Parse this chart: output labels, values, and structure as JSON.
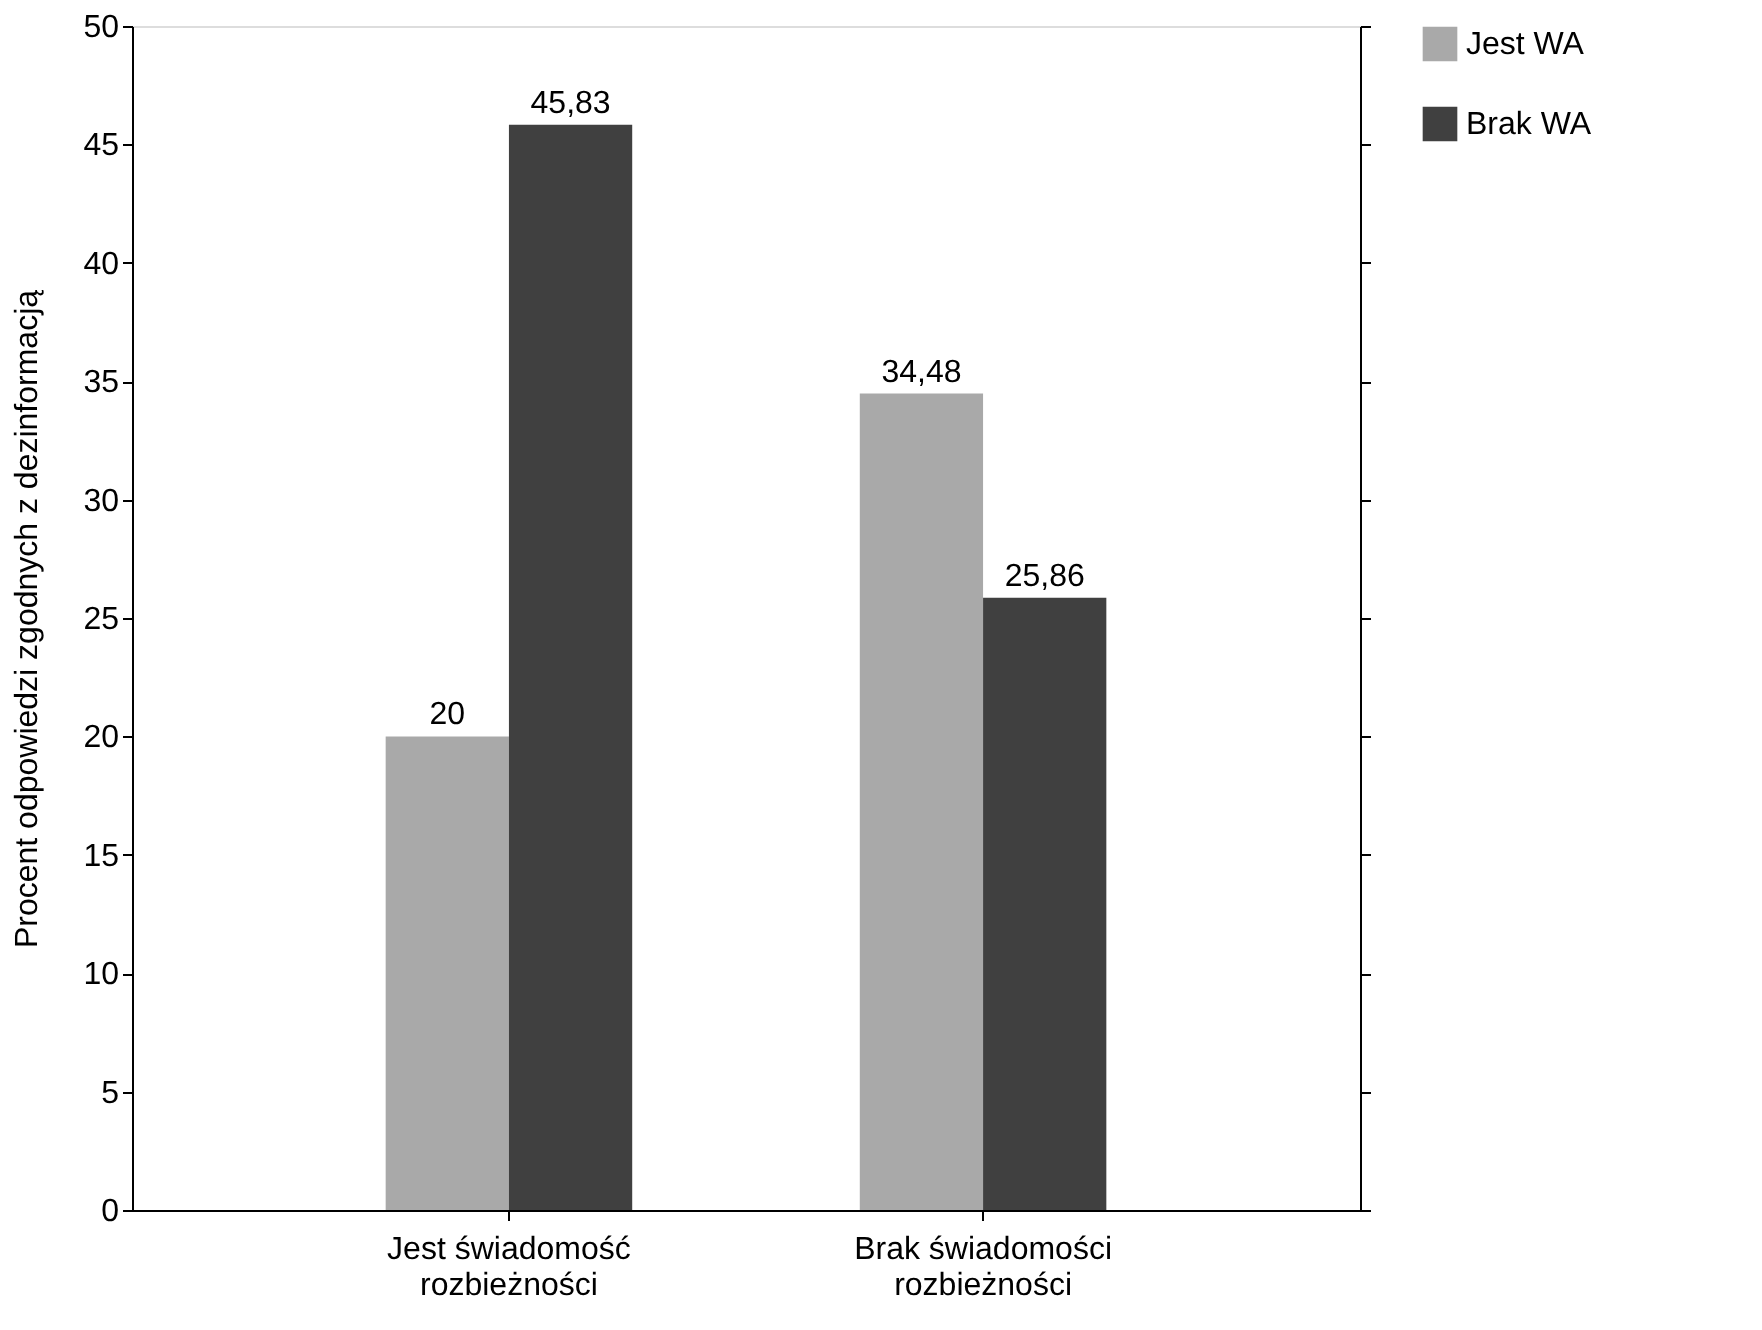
{
  "chart_data": {
    "type": "bar",
    "ylabel": "Procent odpowiedzi zgodnych z dezinformacją",
    "categories": [
      "Jest świadomość\nrozbieżności",
      "Brak świadomości\nrozbieżności"
    ],
    "series": [
      {
        "name": "Jest WA",
        "color": "#a9a9a9",
        "values": [
          20,
          34.48
        ],
        "value_labels": [
          "20",
          "34,48"
        ]
      },
      {
        "name": "Brak WA",
        "color": "#404040",
        "values": [
          45.83,
          25.86
        ],
        "value_labels": [
          "45,83",
          "25,86"
        ]
      }
    ],
    "ylim": [
      0,
      50
    ],
    "yticks": [
      0,
      5,
      10,
      15,
      20,
      25,
      30,
      35,
      40,
      45,
      50
    ],
    "grid": false,
    "legend": "right"
  }
}
